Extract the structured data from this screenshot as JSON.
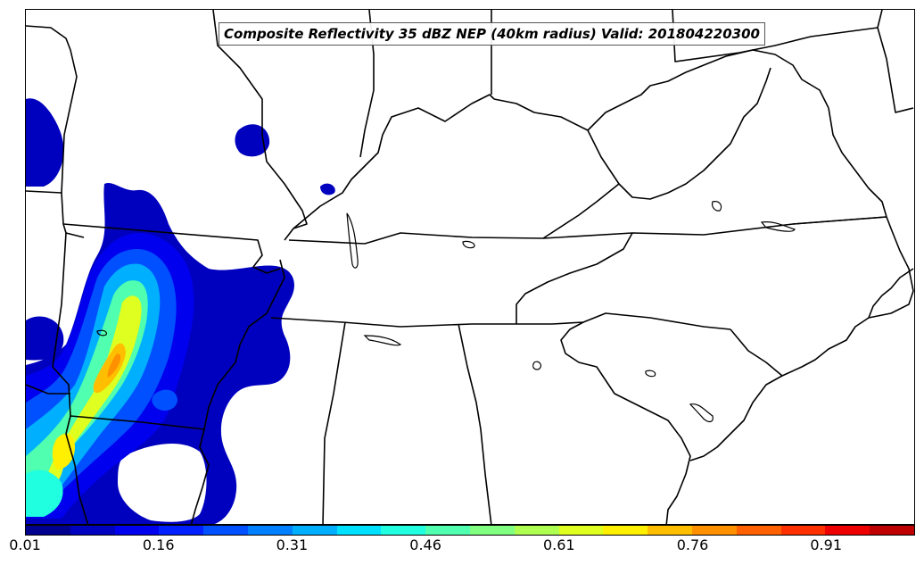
{
  "title": "Composite Reflectivity 35 dBZ NEP (40km radius) Valid: 201804220300",
  "colorbar": {
    "colors": [
      "#00008f",
      "#0000bf",
      "#0000ef",
      "#0020ff",
      "#0050ff",
      "#0080ff",
      "#00b0ff",
      "#00e0ff",
      "#20ffdf",
      "#50ffaf",
      "#80ff80",
      "#afff50",
      "#dfff20",
      "#ffef00",
      "#ffbf00",
      "#ff9000",
      "#ff6000",
      "#ff3000",
      "#ef0000",
      "#bf0000"
    ],
    "tick_labels": [
      "0.01",
      "0.16",
      "0.31",
      "0.46",
      "0.61",
      "0.76",
      "0.91"
    ]
  },
  "map": {
    "projection": "lambert-conformal",
    "region": "Southeastern United States",
    "boundaries": [
      "state-borders",
      "coastline",
      "rivers"
    ]
  }
}
